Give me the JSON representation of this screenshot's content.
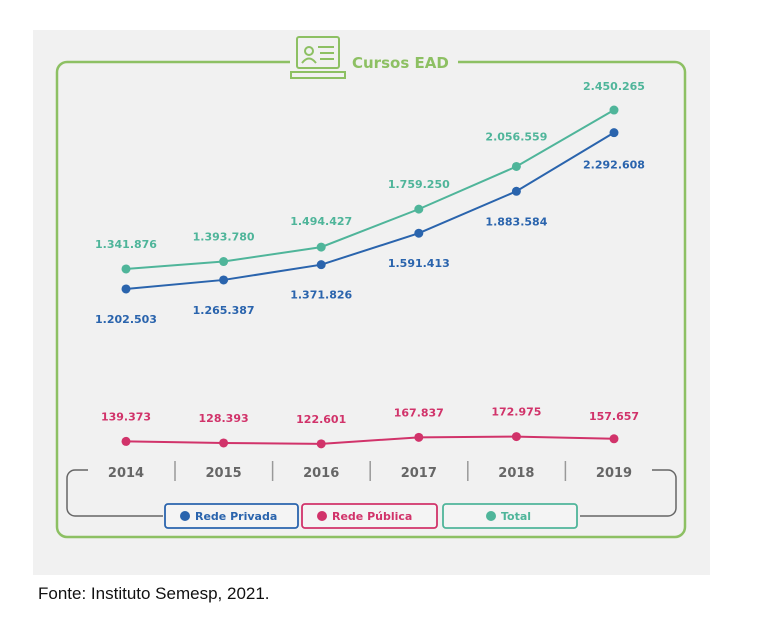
{
  "chart_data": {
    "type": "line",
    "title": "Cursos EAD",
    "icon": "laptop-profile-icon",
    "categories": [
      "2014",
      "2015",
      "2016",
      "2017",
      "2018",
      "2019"
    ],
    "series": [
      {
        "name": "Rede Privada",
        "color": "#2a64ad",
        "values": [
          1202503,
          1265387,
          1371826,
          1591413,
          1883584,
          2292608
        ],
        "labels": [
          "1.202.503",
          "1.265.387",
          "1.371.826",
          "1.591.413",
          "1.883.584",
          "2.292.608"
        ]
      },
      {
        "name": "Rede Pública",
        "color": "#d1336a",
        "values": [
          139373,
          128393,
          122601,
          167837,
          172975,
          157657
        ],
        "labels": [
          "139.373",
          "128.393",
          "122.601",
          "167.837",
          "172.975",
          "157.657"
        ]
      },
      {
        "name": "Total",
        "color": "#4fb59a",
        "values": [
          1341876,
          1393780,
          1494427,
          1759250,
          2056559,
          2450265
        ],
        "labels": [
          "1.341.876",
          "1.393.780",
          "1.494.427",
          "1.759.250",
          "2.056.559",
          "2.450.265"
        ]
      }
    ],
    "legend": "bottom",
    "grid": false
  },
  "caption": "Fonte: Instituto Semesp, 2021."
}
